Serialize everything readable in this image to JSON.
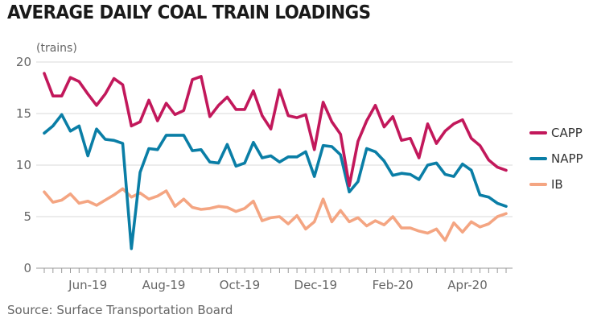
{
  "chart_data": {
    "type": "line",
    "title": "AVERAGE DAILY COAL TRAIN LOADINGS",
    "ylabel": "(trains)",
    "source": "Source: Surface Transportation Board",
    "ylim": [
      0,
      20
    ],
    "yticks": [
      0,
      5,
      10,
      15,
      20
    ],
    "grid": true,
    "legend_position": "right",
    "x": [
      "2019-04-27",
      "2019-05-04",
      "2019-05-11",
      "2019-05-18",
      "2019-05-25",
      "2019-06-01",
      "2019-06-08",
      "2019-06-15",
      "2019-06-22",
      "2019-06-29",
      "2019-07-06",
      "2019-07-13",
      "2019-07-20",
      "2019-07-27",
      "2019-08-03",
      "2019-08-10",
      "2019-08-17",
      "2019-08-24",
      "2019-08-31",
      "2019-09-07",
      "2019-09-14",
      "2019-09-21",
      "2019-09-28",
      "2019-10-05",
      "2019-10-12",
      "2019-10-19",
      "2019-10-26",
      "2019-11-02",
      "2019-11-09",
      "2019-11-16",
      "2019-11-23",
      "2019-11-30",
      "2019-12-07",
      "2019-12-14",
      "2019-12-21",
      "2019-12-28",
      "2020-01-04",
      "2020-01-11",
      "2020-01-18",
      "2020-01-25",
      "2020-02-01",
      "2020-02-08",
      "2020-02-15",
      "2020-02-22",
      "2020-02-29",
      "2020-03-07",
      "2020-03-14",
      "2020-03-21",
      "2020-03-28",
      "2020-04-04",
      "2020-04-11",
      "2020-04-18",
      "2020-04-25",
      "2020-05-02"
    ],
    "xticks": [
      {
        "date": "2019-06-01",
        "label": "Jun-19"
      },
      {
        "date": "2019-08-01",
        "label": "Aug-19"
      },
      {
        "date": "2019-10-01",
        "label": "Oct-19"
      },
      {
        "date": "2019-12-01",
        "label": "Dec-19"
      },
      {
        "date": "2020-02-01",
        "label": "Feb-20"
      },
      {
        "date": "2020-04-01",
        "label": "Apr-20"
      }
    ],
    "series": [
      {
        "name": "CAPP",
        "color": "#c2185b",
        "values": [
          18.9,
          16.7,
          16.7,
          18.5,
          18.1,
          16.9,
          15.8,
          16.9,
          18.4,
          17.8,
          13.8,
          14.2,
          16.3,
          14.3,
          16.0,
          14.9,
          15.3,
          18.3,
          18.6,
          14.7,
          15.8,
          16.6,
          15.4,
          15.4,
          17.2,
          14.8,
          13.5,
          17.3,
          14.8,
          14.6,
          14.9,
          11.5,
          16.1,
          14.2,
          13.0,
          8.0,
          12.3,
          14.3,
          15.8,
          13.7,
          14.7,
          12.4,
          12.6,
          10.7,
          14.0,
          12.1,
          13.3,
          14.0,
          14.4,
          12.6,
          11.9,
          10.5,
          9.8,
          9.5
        ]
      },
      {
        "name": "NAPP",
        "color": "#0a7ea6",
        "values": [
          13.1,
          13.8,
          14.9,
          13.3,
          13.8,
          10.9,
          13.5,
          12.5,
          12.4,
          12.1,
          1.9,
          9.3,
          11.6,
          11.5,
          12.9,
          12.9,
          12.9,
          11.4,
          11.5,
          10.3,
          10.2,
          12.0,
          9.9,
          10.2,
          12.2,
          10.7,
          10.9,
          10.3,
          10.8,
          10.8,
          11.3,
          8.9,
          11.9,
          11.8,
          11.0,
          7.4,
          8.4,
          11.6,
          11.3,
          10.4,
          9.0,
          9.2,
          9.1,
          8.6,
          10.0,
          10.2,
          9.1,
          8.9,
          10.1,
          9.5,
          7.1,
          6.9,
          6.3,
          6.0
        ]
      },
      {
        "name": "IB",
        "color": "#f4a582",
        "values": [
          7.4,
          6.4,
          6.6,
          7.2,
          6.3,
          6.5,
          6.1,
          6.6,
          7.1,
          7.7,
          6.9,
          7.3,
          6.7,
          7.0,
          7.5,
          6.0,
          6.7,
          5.9,
          5.7,
          5.8,
          6.0,
          5.9,
          5.5,
          5.8,
          6.5,
          4.6,
          4.9,
          5.0,
          4.3,
          5.1,
          3.8,
          4.5,
          6.7,
          4.5,
          5.6,
          4.5,
          4.9,
          4.1,
          4.6,
          4.2,
          5.0,
          3.9,
          3.9,
          3.6,
          3.4,
          3.8,
          2.7,
          4.4,
          3.5,
          4.5,
          4.0,
          4.3,
          5.0,
          5.3
        ]
      }
    ]
  }
}
